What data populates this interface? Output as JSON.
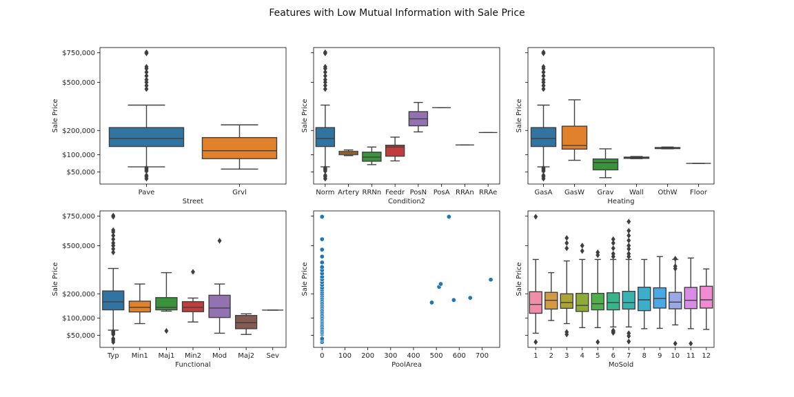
{
  "title": "Features with Low Mutual Information with Sale Price",
  "chart_data": [
    {
      "type": "box",
      "xlabel": "Street",
      "ylabel": "Sale Price",
      "yscale": "sqrt",
      "ylim": [
        25000,
        800000
      ],
      "yticks": [
        {
          "value": 50000,
          "label": "$50,000"
        },
        {
          "value": 100000,
          "label": "$100,000"
        },
        {
          "value": 200000,
          "label": "$200,000"
        },
        {
          "value": 500000,
          "label": "$500,000"
        },
        {
          "value": 750000,
          "label": "$750,000"
        }
      ],
      "show_ytick_labels": true,
      "categories": [
        "Pave",
        "Grvl"
      ],
      "boxes": [
        {
          "color": "#3274a1",
          "whisker_low": 63000,
          "q1": 130000,
          "median": 163000,
          "q3": 214000,
          "whisker_high": 341000,
          "outliers": [
            35000,
            39000,
            42000,
            52000,
            55000,
            58000,
            60000,
            450000,
            475000,
            500000,
            520000,
            550000,
            580000,
            610000,
            625000,
            745000,
            755000
          ]
        },
        {
          "color": "#e1812c",
          "whisker_low": 57000,
          "q1": 87000,
          "median": 114000,
          "q3": 167000,
          "whisker_high": 228000,
          "outliers": []
        }
      ]
    },
    {
      "type": "box",
      "xlabel": "Condition2",
      "ylabel": "Sale Price",
      "yscale": "sqrt",
      "ylim": [
        25000,
        800000
      ],
      "yticks": [
        {
          "value": 50000,
          "label": "$50,000"
        },
        {
          "value": 100000,
          "label": "$100,000"
        },
        {
          "value": 200000,
          "label": "$200,000"
        },
        {
          "value": 500000,
          "label": "$500,000"
        },
        {
          "value": 750000,
          "label": "$750,000"
        }
      ],
      "show_ytick_labels": false,
      "categories": [
        "Norm",
        "Artery",
        "RRNn",
        "Feedr",
        "PosN",
        "PosA",
        "RRAn",
        "RRAe"
      ],
      "boxes": [
        {
          "color": "#3274a1",
          "whisker_low": 63000,
          "q1": 130000,
          "median": 163000,
          "q3": 214000,
          "whisker_high": 341000,
          "outliers": [
            35000,
            39000,
            42000,
            52000,
            55000,
            58000,
            60000,
            450000,
            475000,
            500000,
            520000,
            550000,
            580000,
            610000,
            625000,
            745000,
            755000
          ]
        },
        {
          "color": "#e1812c",
          "whisker_low": 97000,
          "q1": 100000,
          "median": 106000,
          "q3": 112000,
          "whisker_high": 117000,
          "outliers": []
        },
        {
          "color": "#3a923a",
          "whisker_low": 69000,
          "q1": 79000,
          "median": 92000,
          "q3": 109000,
          "whisker_high": 128000,
          "outliers": []
        },
        {
          "color": "#c03d3e",
          "whisker_low": 80000,
          "q1": 95000,
          "median": 128000,
          "q3": 135000,
          "whisker_high": 169000,
          "outliers": []
        },
        {
          "color": "#9372b2",
          "whisker_low": 193000,
          "q1": 223000,
          "median": 260000,
          "q3": 301000,
          "whisker_high": 358000,
          "outliers": []
        },
        {
          "color": "#845b53",
          "whisker_low": 325000,
          "q1": 325000,
          "median": 325000,
          "q3": 325000,
          "whisker_high": 325000,
          "outliers": []
        },
        {
          "color": "#d684bd",
          "whisker_low": 136000,
          "q1": 136000,
          "median": 136000,
          "q3": 136000,
          "whisker_high": 136000,
          "outliers": []
        },
        {
          "color": "#7f7f7f",
          "whisker_low": 190000,
          "q1": 190000,
          "median": 190000,
          "q3": 190000,
          "whisker_high": 190000,
          "outliers": []
        }
      ]
    },
    {
      "type": "box",
      "xlabel": "Heating",
      "ylabel": "Sale Price",
      "yscale": "sqrt",
      "ylim": [
        25000,
        800000
      ],
      "yticks": [
        {
          "value": 50000,
          "label": "$50,000"
        },
        {
          "value": 100000,
          "label": "$100,000"
        },
        {
          "value": 200000,
          "label": "$200,000"
        },
        {
          "value": 500000,
          "label": "$500,000"
        },
        {
          "value": 750000,
          "label": "$750,000"
        }
      ],
      "show_ytick_labels": false,
      "categories": [
        "GasA",
        "GasW",
        "Grav",
        "Wall",
        "OthW",
        "Floor"
      ],
      "boxes": [
        {
          "color": "#3274a1",
          "whisker_low": 63000,
          "q1": 130000,
          "median": 163000,
          "q3": 214000,
          "whisker_high": 341000,
          "outliers": [
            35000,
            39000,
            42000,
            52000,
            55000,
            58000,
            60000,
            450000,
            475000,
            500000,
            520000,
            550000,
            580000,
            610000,
            625000,
            745000,
            755000
          ]
        },
        {
          "color": "#e1812c",
          "whisker_low": 82000,
          "q1": 120000,
          "median": 134000,
          "q3": 221000,
          "whisker_high": 375000,
          "outliers": []
        },
        {
          "color": "#3a923a",
          "whisker_low": 37000,
          "q1": 55000,
          "median": 75000,
          "q3": 86000,
          "whisker_high": 121000,
          "outliers": []
        },
        {
          "color": "#c03d3e",
          "whisker_low": 87000,
          "q1": 88000,
          "median": 90000,
          "q3": 92000,
          "whisker_high": 94000,
          "outliers": []
        },
        {
          "color": "#9372b2",
          "whisker_low": 121000,
          "q1": 122000,
          "median": 125000,
          "q3": 126000,
          "whisker_high": 128000,
          "outliers": []
        },
        {
          "color": "#845b53",
          "whisker_low": 72500,
          "q1": 72500,
          "median": 72500,
          "q3": 72500,
          "whisker_high": 72500,
          "outliers": []
        }
      ]
    },
    {
      "type": "box",
      "xlabel": "Functional",
      "ylabel": "Sale Price",
      "yscale": "sqrt",
      "ylim": [
        25000,
        800000
      ],
      "yticks": [
        {
          "value": 50000,
          "label": "$50,000"
        },
        {
          "value": 100000,
          "label": "$100,000"
        },
        {
          "value": 200000,
          "label": "$200,000"
        },
        {
          "value": 500000,
          "label": "$500,000"
        },
        {
          "value": 750000,
          "label": "$750,000"
        }
      ],
      "show_ytick_labels": true,
      "categories": [
        "Typ",
        "Min1",
        "Maj1",
        "Min2",
        "Mod",
        "Maj2",
        "Sev"
      ],
      "boxes": [
        {
          "color": "#3274a1",
          "whisker_low": 63000,
          "q1": 130000,
          "median": 163000,
          "q3": 214000,
          "whisker_high": 341000,
          "outliers": [
            35000,
            39000,
            42000,
            52000,
            55000,
            58000,
            60000,
            450000,
            475000,
            500000,
            520000,
            550000,
            580000,
            610000,
            625000,
            745000,
            755000
          ]
        },
        {
          "color": "#e1812c",
          "whisker_low": 82000,
          "q1": 122000,
          "median": 140000,
          "q3": 166000,
          "whisker_high": 250000,
          "outliers": []
        },
        {
          "color": "#3a923a",
          "whisker_low": 125000,
          "q1": 130000,
          "median": 140000,
          "q3": 182000,
          "whisker_high": 315000,
          "outliers": [
            61000
          ]
        },
        {
          "color": "#c03d3e",
          "whisker_low": 87000,
          "q1": 123000,
          "median": 140000,
          "q3": 164000,
          "whisker_high": 180000,
          "outliers": [
            320000
          ]
        },
        {
          "color": "#9372b2",
          "whisker_low": 55000,
          "q1": 102000,
          "median": 137000,
          "q3": 193000,
          "whisker_high": 250000,
          "outliers": [
            538000
          ]
        },
        {
          "color": "#845b53",
          "whisker_low": 52000,
          "q1": 67000,
          "median": 85000,
          "q3": 109000,
          "whisker_high": 115000,
          "outliers": []
        },
        {
          "color": "#d684bd",
          "whisker_low": 129000,
          "q1": 129000,
          "median": 129000,
          "q3": 129000,
          "whisker_high": 129000,
          "outliers": []
        }
      ]
    },
    {
      "type": "scatter",
      "xlabel": "PoolArea",
      "ylabel": "Sale Price",
      "yscale": "sqrt",
      "ylim": [
        25000,
        800000
      ],
      "yticks": [
        {
          "value": 50000,
          "label": "$50,000"
        },
        {
          "value": 100000,
          "label": "$100,000"
        },
        {
          "value": 200000,
          "label": "$200,000"
        },
        {
          "value": 500000,
          "label": "$500,000"
        },
        {
          "value": 750000,
          "label": "$750,000"
        }
      ],
      "show_ytick_labels": false,
      "xlim": [
        -37,
        777
      ],
      "xticks": [
        0,
        100,
        200,
        300,
        400,
        500,
        600,
        700
      ],
      "color": "#1f77b4",
      "x": [
        0,
        0,
        0,
        0,
        0,
        0,
        0,
        0,
        0,
        0,
        0,
        0,
        0,
        0,
        0,
        0,
        0,
        0,
        0,
        0,
        0,
        0,
        0,
        0,
        0,
        0,
        0,
        0,
        0,
        0,
        0,
        0,
        0,
        0,
        0,
        0,
        0,
        0,
        0,
        0,
        0,
        0,
        0,
        0,
        480,
        512,
        519,
        555,
        576,
        648,
        738
      ],
      "y": [
        35000,
        39000,
        42000,
        52000,
        55000,
        58000,
        62000,
        66000,
        70000,
        75000,
        80000,
        85000,
        90000,
        95000,
        100000,
        106000,
        112000,
        118000,
        124000,
        130000,
        137000,
        144000,
        151000,
        158000,
        166000,
        174000,
        182000,
        191000,
        200000,
        210000,
        220000,
        230000,
        245000,
        260000,
        275000,
        290000,
        310000,
        330000,
        350000,
        380000,
        420000,
        470000,
        550000,
        745000,
        160000,
        235000,
        250000,
        745000,
        171000,
        181000,
        274000
      ]
    },
    {
      "type": "box",
      "xlabel": "MoSold",
      "ylabel": "Sale Price",
      "yscale": "sqrt",
      "ylim": [
        25000,
        800000
      ],
      "yticks": [
        {
          "value": 50000,
          "label": "$50,000"
        },
        {
          "value": 100000,
          "label": "$100,000"
        },
        {
          "value": 200000,
          "label": "$200,000"
        },
        {
          "value": 500000,
          "label": "$500,000"
        },
        {
          "value": 750000,
          "label": "$750,000"
        }
      ],
      "show_ytick_labels": false,
      "categories": [
        "1",
        "2",
        "3",
        "4",
        "5",
        "6",
        "7",
        "8",
        "9",
        "10",
        "11",
        "12"
      ],
      "boxes": [
        {
          "color": "#f08ea5",
          "whisker_low": 55000,
          "q1": 117000,
          "median": 152000,
          "q3": 210000,
          "whisker_high": 400000,
          "outliers": [
            35000,
            745000
          ]
        },
        {
          "color": "#d29a45",
          "whisker_low": 92000,
          "q1": 133000,
          "median": 170000,
          "q3": 207000,
          "whisker_high": 315000,
          "outliers": []
        },
        {
          "color": "#aba537",
          "whisker_low": 82000,
          "q1": 136000,
          "median": 160000,
          "q3": 200000,
          "whisker_high": 390000,
          "outliers": [
            52000,
            58000,
            480000,
            520000,
            560000
          ]
        },
        {
          "color": "#8fab37",
          "whisker_low": 70000,
          "q1": 124000,
          "median": 148000,
          "q3": 202000,
          "whisker_high": 400000,
          "outliers": [
            460000,
            500000
          ]
        },
        {
          "color": "#4fb04b",
          "whisker_low": 70000,
          "q1": 130000,
          "median": 155000,
          "q3": 202000,
          "whisker_high": 400000,
          "outliers": [
            35000,
            430000,
            450000
          ]
        },
        {
          "color": "#38b48a",
          "whisker_low": 72000,
          "q1": 130000,
          "median": 160000,
          "q3": 205000,
          "whisker_high": 400000,
          "outliers": [
            56000,
            58000,
            60000,
            62000,
            420000,
            440000,
            480000,
            520000,
            550000
          ]
        },
        {
          "color": "#3bb2b0",
          "whisker_low": 72000,
          "q1": 133000,
          "median": 160000,
          "q3": 212000,
          "whisker_high": 400000,
          "outliers": [
            36000,
            48000,
            55000,
            420000,
            440000,
            475000,
            500000,
            540000,
            580000,
            620000,
            700000
          ]
        },
        {
          "color": "#3caec9",
          "whisker_low": 67000,
          "q1": 127000,
          "median": 172000,
          "q3": 233000,
          "whisker_high": 400000,
          "outliers": []
        },
        {
          "color": "#4aa8e4",
          "whisker_low": 68000,
          "q1": 137000,
          "median": 178000,
          "q3": 230000,
          "whisker_high": 420000,
          "outliers": []
        },
        {
          "color": "#9ba8e8",
          "whisker_low": 78000,
          "q1": 134000,
          "median": 162000,
          "q3": 207000,
          "whisker_high": 400000,
          "outliers": [
            32000,
            340000,
            355000,
            405000
          ]
        },
        {
          "color": "#d88ce6",
          "whisker_low": 67000,
          "q1": 135000,
          "median": 170000,
          "q3": 232000,
          "whisker_high": 410000,
          "outliers": [
            32000
          ]
        },
        {
          "color": "#ef8bd2",
          "whisker_low": 65000,
          "q1": 137000,
          "median": 172000,
          "q3": 238000,
          "whisker_high": 338000,
          "outliers": []
        }
      ]
    }
  ]
}
